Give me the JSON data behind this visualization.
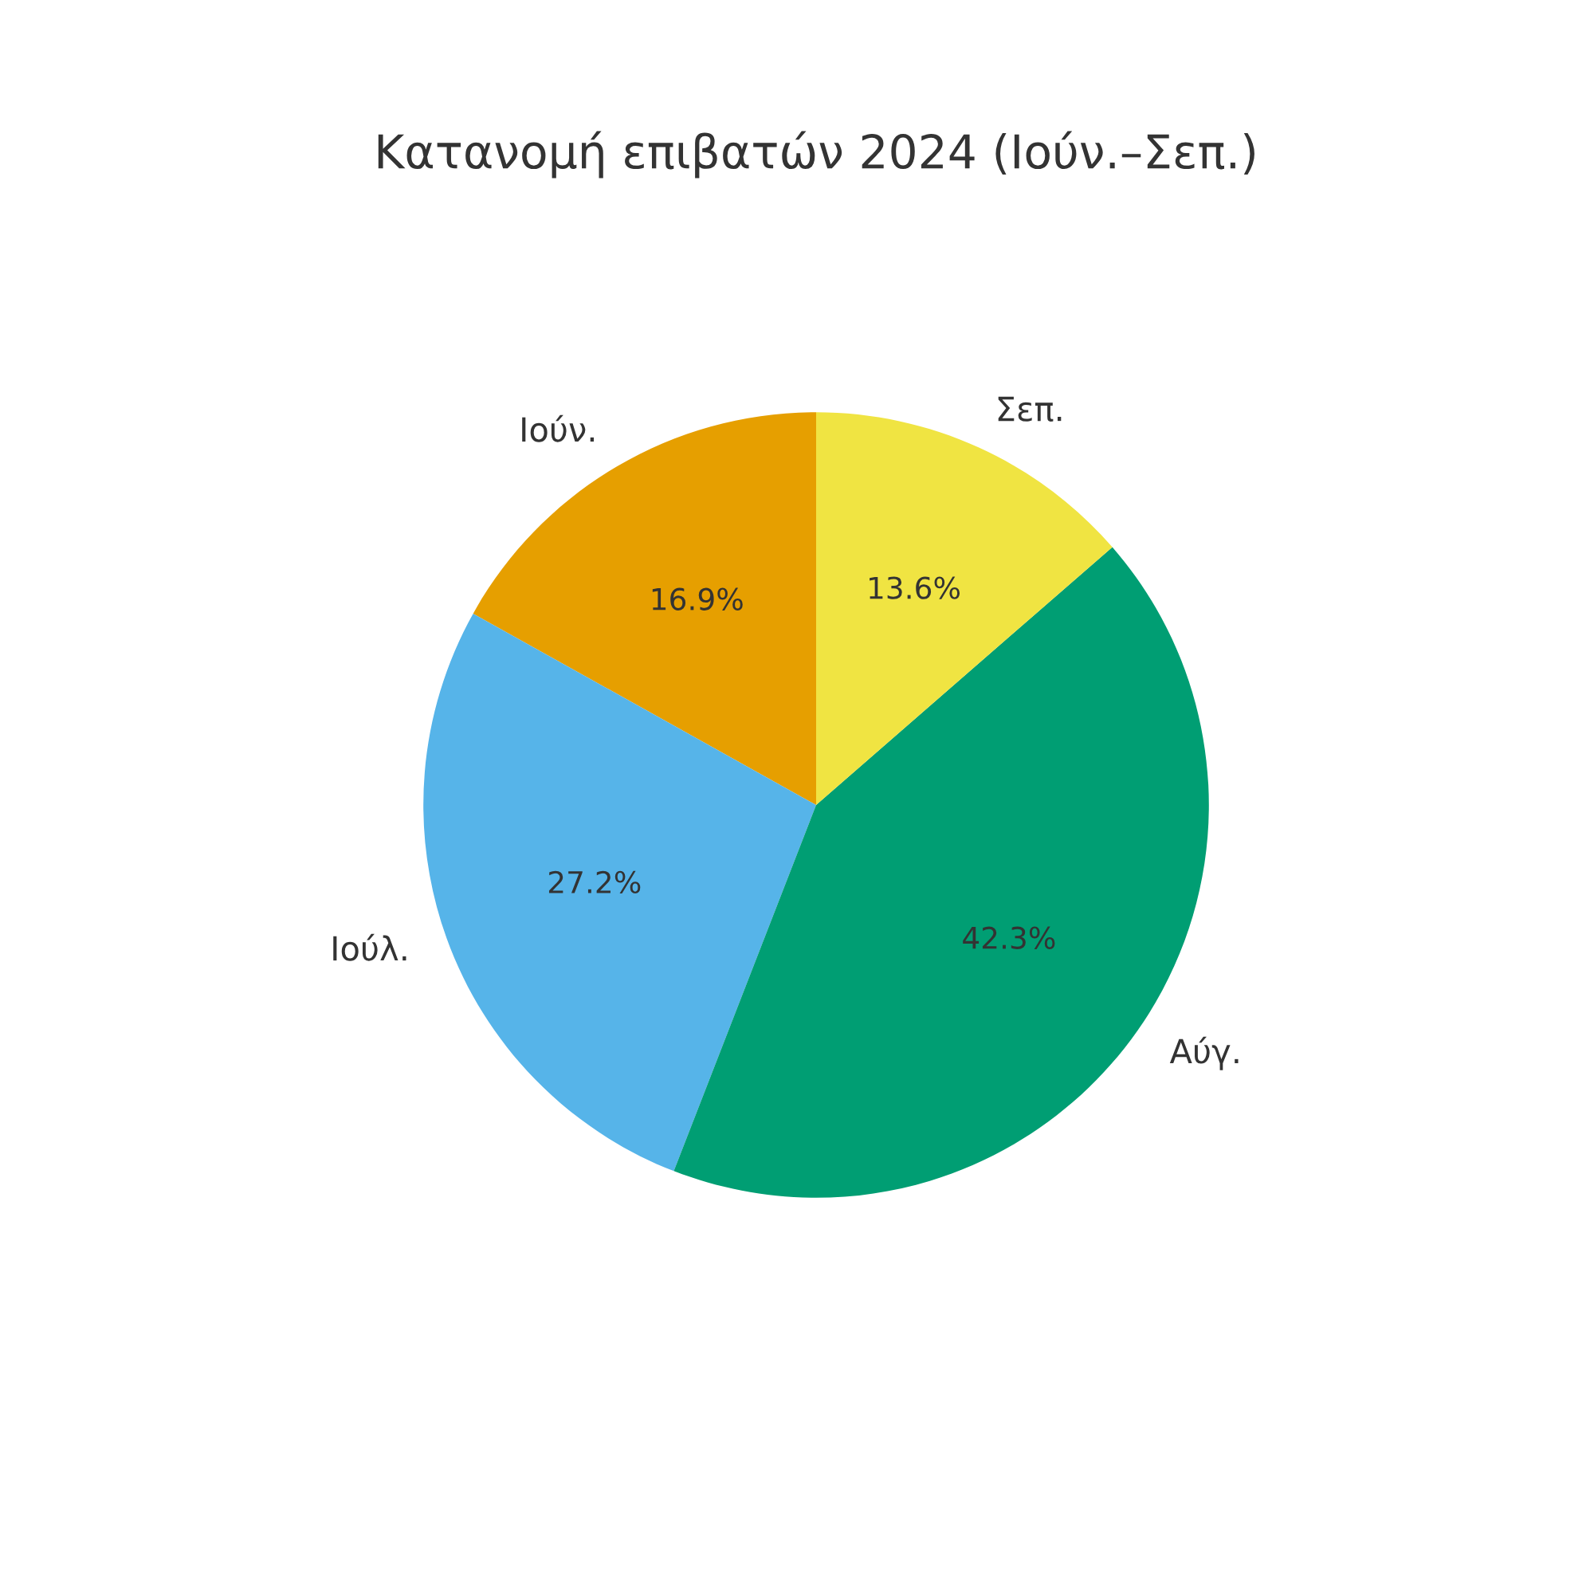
{
  "chart_data": {
    "type": "pie",
    "title": "Κατανομή επιβατών 2024 (Ιούν.–Σεπ.)",
    "categories": [
      "Ιούν.",
      "Ιούλ.",
      "Αύγ.",
      "Σεπ."
    ],
    "values": [
      16.9,
      27.2,
      42.3,
      13.6
    ],
    "colors": [
      "#e69f00",
      "#56b4e9",
      "#009e73",
      "#f0e442"
    ],
    "value_labels": [
      "16.9%",
      "27.2%",
      "42.3%",
      "13.6%"
    ]
  }
}
